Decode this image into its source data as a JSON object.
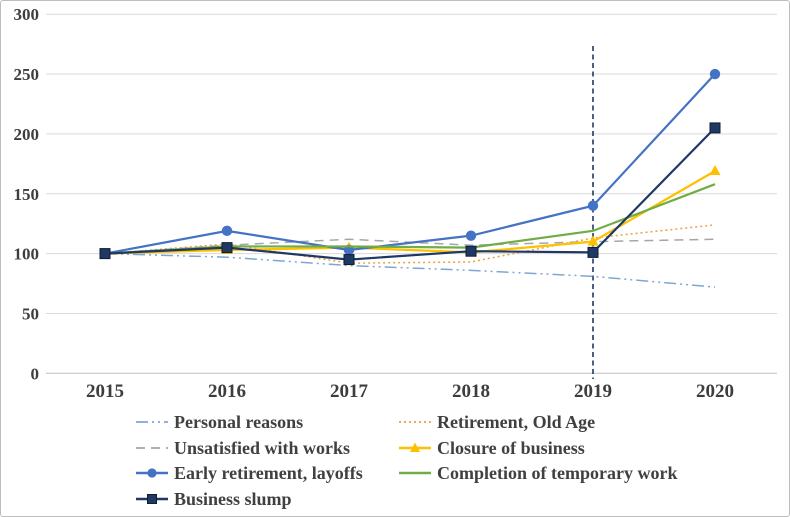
{
  "figure": {
    "background": "#ffffff",
    "border_color": "#bdbdbd"
  },
  "colors": {
    "gridline": "#d9d9d9",
    "axis_line": "#bfbfbf",
    "tick_label": "#3d3d3d",
    "legend_text": "#404040",
    "reference_line": "#1f3864"
  },
  "chart_data": {
    "type": "line",
    "title": "",
    "xlabel": "",
    "ylabel": "",
    "x": [
      2015,
      2016,
      2017,
      2018,
      2019,
      2020
    ],
    "x_labels": [
      "2015",
      "2016",
      "2017",
      "2018",
      "2019",
      "2020"
    ],
    "y_ticks": [
      0,
      50,
      100,
      150,
      200,
      250,
      300
    ],
    "ylim": [
      0,
      300
    ],
    "grid": "horizontal",
    "legend_position": "bottom, two columns",
    "annotation": {
      "type": "vertical-dashed-line",
      "x": 2019,
      "color": "#1f3864"
    },
    "series": [
      {
        "name": "Personal reasons",
        "values": [
          100,
          97,
          90,
          86,
          81,
          72
        ],
        "color": "#7ea6d4",
        "line_style": "dash-dot-dot",
        "marker": "none",
        "legend_column": 0,
        "legend_row": 0
      },
      {
        "name": "Retirement, Old Age",
        "values": [
          100,
          108,
          92,
          93,
          113,
          124
        ],
        "color": "#e8a33d",
        "line_style": "dotted",
        "marker": "none",
        "legend_column": 1,
        "legend_row": 0
      },
      {
        "name": "Unsatisfied with works",
        "values": [
          100,
          107,
          112,
          107,
          110,
          112
        ],
        "color": "#a6a6a6",
        "line_style": "dashed",
        "marker": "none",
        "legend_column": 0,
        "legend_row": 1
      },
      {
        "name": "Closure of business",
        "values": [
          100,
          103,
          105,
          101,
          110,
          169
        ],
        "color": "#ffc000",
        "line_style": "solid",
        "marker": "triangle",
        "legend_column": 1,
        "legend_row": 1
      },
      {
        "name": "Early retirement, layoffs",
        "values": [
          100,
          119,
          103,
          115,
          140,
          250
        ],
        "color": "#4472c4",
        "line_style": "solid",
        "marker": "circle",
        "legend_column": 0,
        "legend_row": 2
      },
      {
        "name": "Completion of temporary work",
        "values": [
          100,
          106,
          106,
          105,
          119,
          158
        ],
        "color": "#70ad47",
        "line_style": "solid",
        "marker": "none",
        "legend_column": 1,
        "legend_row": 2
      },
      {
        "name": "Business slump",
        "values": [
          100,
          105,
          95,
          102,
          101,
          205
        ],
        "color": "#1f3864",
        "line_style": "solid",
        "marker": "square",
        "legend_column": 0,
        "legend_row": 3
      }
    ]
  }
}
